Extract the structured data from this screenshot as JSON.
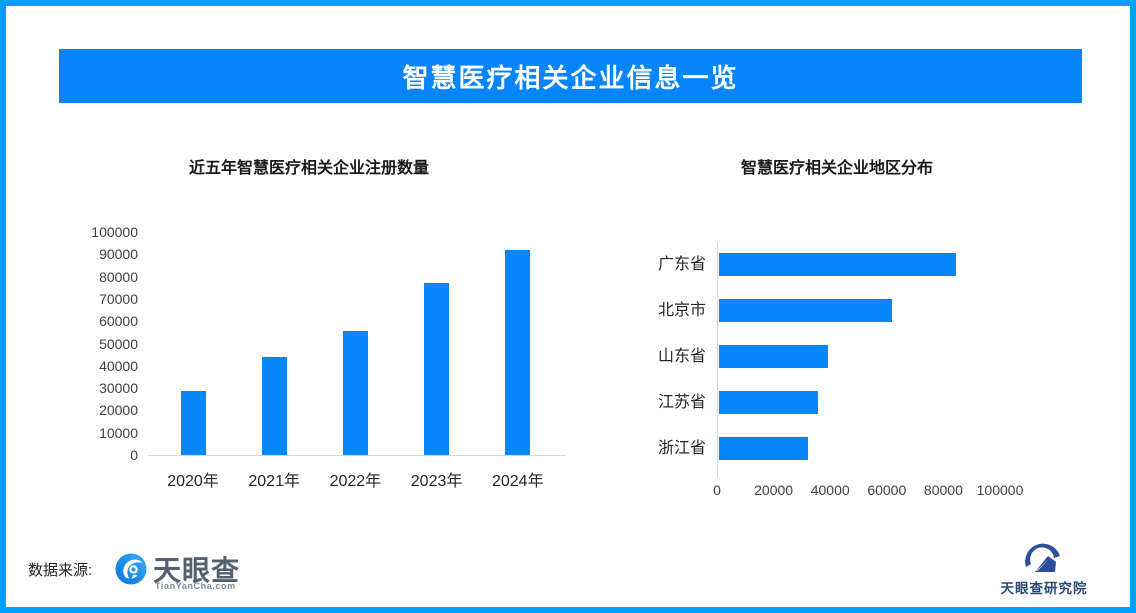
{
  "page": {
    "border_color": "#00a0fc",
    "banner_color": "#0485fb",
    "title": "智慧医疗相关企业信息一览"
  },
  "chart_data": [
    {
      "type": "bar",
      "title": "近五年智慧医疗相关企业注册数量",
      "categories": [
        "2020年",
        "2021年",
        "2022年",
        "2023年",
        "2024年"
      ],
      "values": [
        28500,
        43800,
        55500,
        77000,
        92000
      ],
      "xlabel": "",
      "ylabel": "",
      "ylim": [
        0,
        100000
      ],
      "ytick_step": 10000,
      "bar_color": "#0686fb",
      "grid": false,
      "legend": "none"
    },
    {
      "type": "bar_horizontal",
      "title": "智慧医疗相关企业地区分布",
      "categories": [
        "广东省",
        "北京市",
        "山东省",
        "江苏省",
        "浙江省"
      ],
      "values": [
        83600,
        61000,
        38500,
        35000,
        31400
      ],
      "xlim": [
        0,
        100000
      ],
      "xticks": [
        0,
        20000,
        40000,
        60000,
        80000,
        100000
      ],
      "bar_color": "#0686fb",
      "grid": false,
      "legend": "none"
    }
  ],
  "footer": {
    "source_label": "数据来源:",
    "tianyancha": {
      "name": "天眼查",
      "domain": "TianYanCha.com",
      "icon": "tianyancha-eye-swirl-icon"
    },
    "research_institute": {
      "name": "天眼查研究院",
      "icon": "tianyancha-research-mountain-icon"
    }
  }
}
